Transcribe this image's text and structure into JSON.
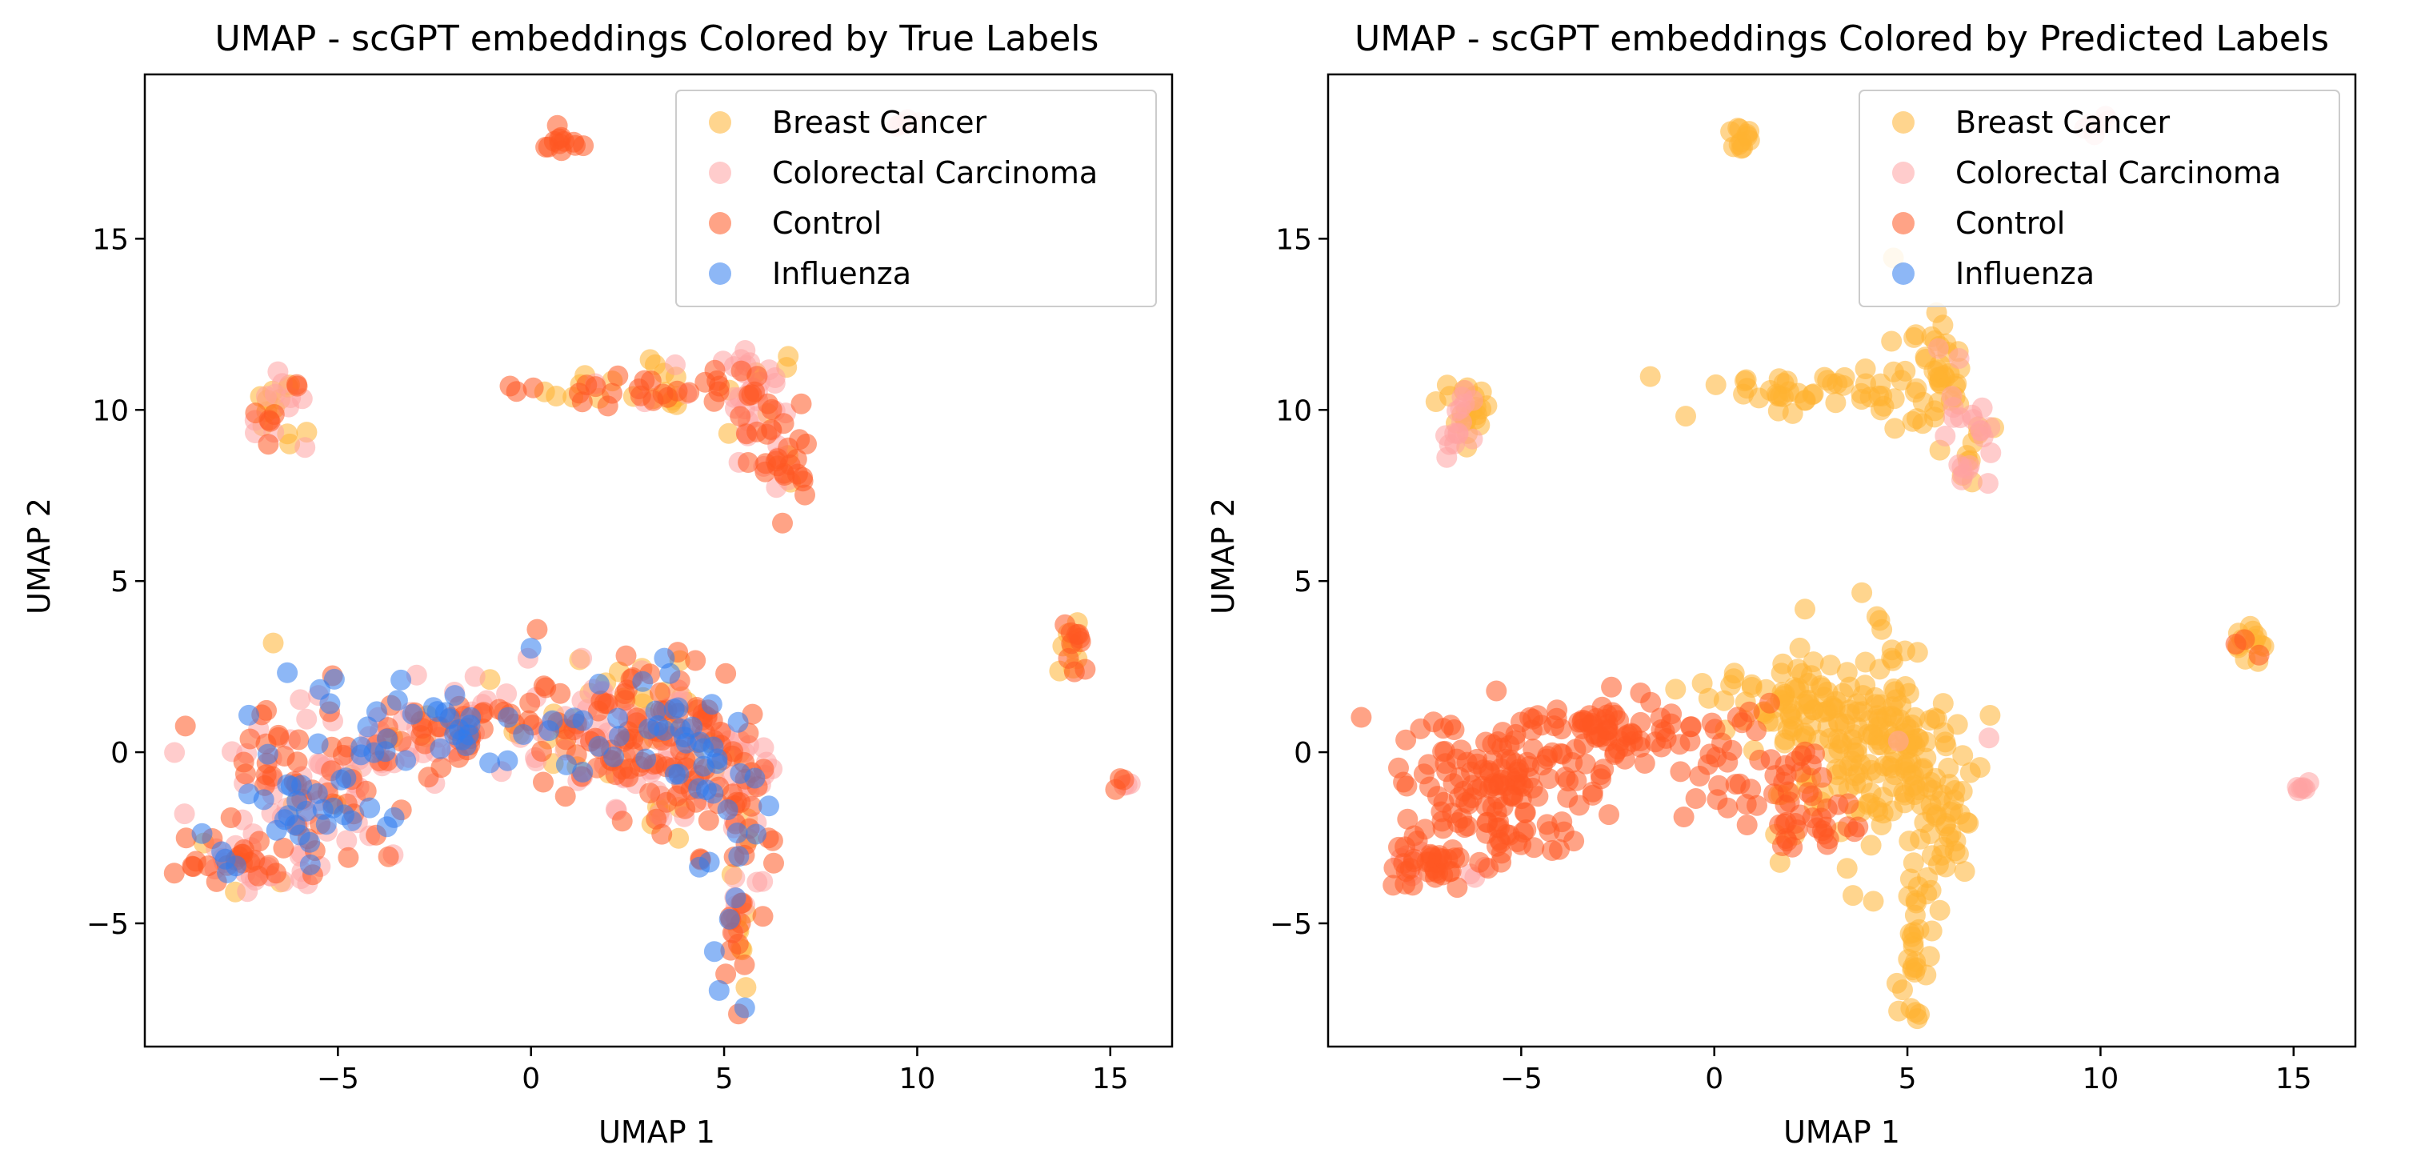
{
  "colors": {
    "breast_cancer": "#FFB232",
    "colorectal_carcinoma": "#FFA3A3",
    "control": "#FF5722",
    "influenza": "#2F7BEF"
  },
  "chart_data": [
    {
      "type": "scatter",
      "title": "UMAP - scGPT embeddings Colored by True Labels",
      "xlabel": "UMAP 1",
      "ylabel": "UMAP 2",
      "xlim": [
        -10,
        16.6
      ],
      "ylim": [
        -8.6,
        19.8
      ],
      "xticks": [
        -5,
        0,
        5,
        10,
        15
      ],
      "yticks": [
        -5,
        0,
        5,
        10,
        15
      ],
      "xtick_labels": [
        "−5",
        "0",
        "5",
        "10",
        "15"
      ],
      "ytick_labels": [
        "−5",
        "0",
        "5",
        "10",
        "15"
      ],
      "legend": {
        "placement": "top-right",
        "entries": [
          "Breast Cancer",
          "Colorectal Carcinoma",
          "Control",
          "Influenza"
        ]
      },
      "clusters": [
        {
          "cx": 0.8,
          "cy": 17.9,
          "sx": 0.2,
          "sy": 0.25,
          "n": 12,
          "mix": [
            0.1,
            0.1,
            0.8,
            0
          ]
        },
        {
          "cx": 9.8,
          "cy": 18.3,
          "sx": 0.2,
          "sy": 0.2,
          "n": 6,
          "mix": [
            0,
            1,
            0,
            0
          ]
        },
        {
          "cx": -6.5,
          "cy": 10.1,
          "sx": 0.4,
          "sy": 0.6,
          "n": 30,
          "mix": [
            0.45,
            0.3,
            0.25,
            0
          ]
        },
        {
          "cx": 2.5,
          "cy": 10.6,
          "sx": 1.4,
          "sy": 0.3,
          "n": 45,
          "mix": [
            0.5,
            0.15,
            0.35,
            0
          ]
        },
        {
          "cx": 5.8,
          "cy": 10.5,
          "sx": 0.6,
          "sy": 1.0,
          "n": 50,
          "mix": [
            0.15,
            0.5,
            0.35,
            0
          ]
        },
        {
          "cx": 6.6,
          "cy": 8.5,
          "sx": 0.35,
          "sy": 0.7,
          "n": 25,
          "mix": [
            0.1,
            0.3,
            0.6,
            0
          ]
        },
        {
          "cx": 14,
          "cy": 3.3,
          "sx": 0.2,
          "sy": 0.4,
          "n": 18,
          "mix": [
            0.4,
            0,
            0.6,
            0
          ]
        },
        {
          "cx": 15.3,
          "cy": -1.0,
          "sx": 0.15,
          "sy": 0.12,
          "n": 6,
          "mix": [
            0,
            0.3,
            0.7,
            0
          ]
        },
        {
          "cx": -7.5,
          "cy": -3.2,
          "sx": 0.7,
          "sy": 0.4,
          "n": 45,
          "mix": [
            0.05,
            0.35,
            0.45,
            0.15
          ]
        },
        {
          "cx": -5.5,
          "cy": -1.0,
          "sx": 1.2,
          "sy": 1.2,
          "n": 140,
          "mix": [
            0.05,
            0.3,
            0.35,
            0.3
          ]
        },
        {
          "cx": -2.5,
          "cy": 0.6,
          "sx": 1.1,
          "sy": 0.55,
          "n": 70,
          "mix": [
            0.1,
            0.25,
            0.4,
            0.25
          ]
        },
        {
          "cx": 1.0,
          "cy": 0.7,
          "sx": 1.3,
          "sy": 1.0,
          "n": 110,
          "mix": [
            0.15,
            0.3,
            0.35,
            0.2
          ]
        },
        {
          "cx": 3.6,
          "cy": 0.2,
          "sx": 1.1,
          "sy": 1.3,
          "n": 170,
          "mix": [
            0.15,
            0.3,
            0.4,
            0.15
          ]
        },
        {
          "cx": 5.5,
          "cy": -1.5,
          "sx": 0.5,
          "sy": 1.3,
          "n": 45,
          "mix": [
            0.15,
            0.25,
            0.5,
            0.1
          ]
        },
        {
          "cx": 5.3,
          "cy": -5.5,
          "sx": 0.2,
          "sy": 1.1,
          "n": 30,
          "mix": [
            0.3,
            0.2,
            0.4,
            0.1
          ]
        }
      ]
    },
    {
      "type": "scatter",
      "title": "UMAP - scGPT embeddings Colored by Predicted Labels",
      "xlabel": "UMAP 1",
      "ylabel": "UMAP 2",
      "xlim": [
        -10,
        16.6
      ],
      "ylim": [
        -8.6,
        19.8
      ],
      "xticks": [
        -5,
        0,
        5,
        10,
        15
      ],
      "yticks": [
        -5,
        0,
        5,
        10,
        15
      ],
      "xtick_labels": [
        "−5",
        "0",
        "5",
        "10",
        "15"
      ],
      "ytick_labels": [
        "−5",
        "0",
        "5",
        "10",
        "15"
      ],
      "legend": {
        "placement": "top-right",
        "entries": [
          "Breast Cancer",
          "Colorectal Carcinoma",
          "Control",
          "Influenza"
        ]
      },
      "clusters": [
        {
          "cx": 0.8,
          "cy": 17.9,
          "sx": 0.2,
          "sy": 0.25,
          "n": 12,
          "mix": [
            1,
            0,
            0,
            0
          ]
        },
        {
          "cx": 9.8,
          "cy": 18.3,
          "sx": 0.2,
          "sy": 0.2,
          "n": 6,
          "mix": [
            0,
            1,
            0,
            0
          ]
        },
        {
          "cx": -6.5,
          "cy": 10.2,
          "sx": 0.4,
          "sy": 0.55,
          "n": 28,
          "mix": [
            0.8,
            0.2,
            0,
            0
          ]
        },
        {
          "cx": -6.7,
          "cy": 9.1,
          "sx": 0.25,
          "sy": 0.3,
          "n": 8,
          "mix": [
            0,
            1,
            0,
            0
          ]
        },
        {
          "cx": 2.5,
          "cy": 10.6,
          "sx": 1.4,
          "sy": 0.3,
          "n": 45,
          "mix": [
            1,
            0,
            0,
            0
          ]
        },
        {
          "cx": 5.6,
          "cy": 10.8,
          "sx": 0.5,
          "sy": 0.9,
          "n": 45,
          "mix": [
            0.95,
            0.05,
            0,
            0
          ]
        },
        {
          "cx": 6.6,
          "cy": 9.0,
          "sx": 0.35,
          "sy": 0.8,
          "n": 28,
          "mix": [
            0.3,
            0.7,
            0,
            0
          ]
        },
        {
          "cx": 13.9,
          "cy": 3.2,
          "sx": 0.2,
          "sy": 0.35,
          "n": 16,
          "mix": [
            0.85,
            0,
            0.15,
            0
          ]
        },
        {
          "cx": 15.3,
          "cy": -1.0,
          "sx": 0.15,
          "sy": 0.12,
          "n": 6,
          "mix": [
            0,
            1,
            0,
            0
          ]
        },
        {
          "cx": -7.5,
          "cy": -3.2,
          "sx": 0.7,
          "sy": 0.4,
          "n": 45,
          "mix": [
            0,
            0.15,
            0.85,
            0
          ]
        },
        {
          "cx": -5.5,
          "cy": -1.0,
          "sx": 1.2,
          "sy": 1.2,
          "n": 140,
          "mix": [
            0,
            0,
            1,
            0
          ]
        },
        {
          "cx": -2.5,
          "cy": 0.6,
          "sx": 1.1,
          "sy": 0.55,
          "n": 70,
          "mix": [
            0,
            0,
            1,
            0
          ]
        },
        {
          "cx": 0.8,
          "cy": -0.5,
          "sx": 1.0,
          "sy": 0.8,
          "n": 40,
          "mix": [
            0,
            0,
            1,
            0
          ]
        },
        {
          "cx": 2.5,
          "cy": -2.0,
          "sx": 0.9,
          "sy": 0.6,
          "n": 30,
          "mix": [
            0.2,
            0,
            0.8,
            0
          ]
        },
        {
          "cx": 1.8,
          "cy": 1.5,
          "sx": 1.0,
          "sy": 0.8,
          "n": 60,
          "mix": [
            1,
            0,
            0,
            0
          ]
        },
        {
          "cx": 4.2,
          "cy": 0.0,
          "sx": 1.1,
          "sy": 1.5,
          "n": 180,
          "mix": [
            0.97,
            0.03,
            0,
            0
          ]
        },
        {
          "cx": 5.8,
          "cy": -2.0,
          "sx": 0.4,
          "sy": 1.0,
          "n": 35,
          "mix": [
            1,
            0,
            0,
            0
          ]
        },
        {
          "cx": 5.2,
          "cy": -5.5,
          "sx": 0.2,
          "sy": 1.1,
          "n": 28,
          "mix": [
            1,
            0,
            0,
            0
          ]
        }
      ]
    }
  ]
}
